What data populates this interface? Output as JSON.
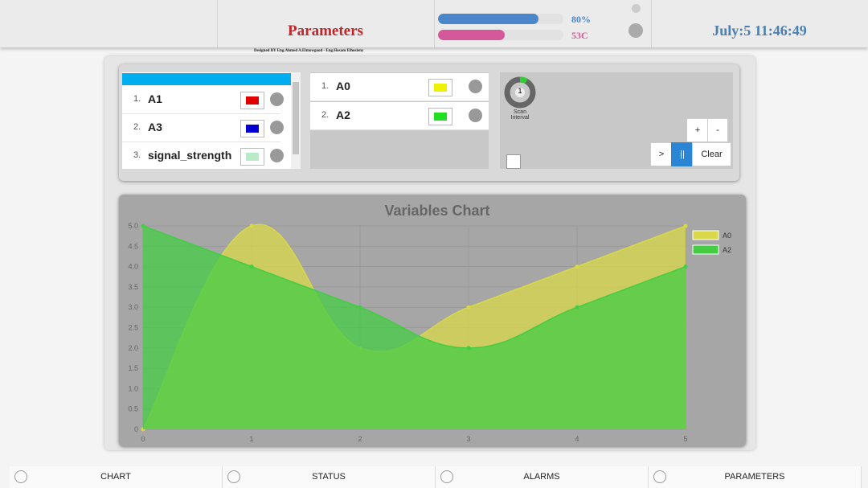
{
  "header": {
    "title": "Parameters",
    "credit": "Designed BY Eng.Ahmed A.Elmowgood - Eng.Hosam Elhosieny",
    "progress": [
      {
        "value": 80,
        "label": "80%",
        "color": "#4a86c8"
      },
      {
        "value": 53,
        "label": "53C",
        "color": "#d4589a"
      }
    ],
    "datetime": "July:5 11:46:49"
  },
  "variables": [
    {
      "index": "1.",
      "name": "A1",
      "color": "#e00000"
    },
    {
      "index": "2.",
      "name": "A3",
      "color": "#0000d0"
    },
    {
      "index": "3.",
      "name": "signal_strength",
      "color": "#b8ecc8"
    }
  ],
  "selected": [
    {
      "index": "1.",
      "name": "A0",
      "color": "#f0f000"
    },
    {
      "index": "2.",
      "name": "A2",
      "color": "#22dd22"
    }
  ],
  "controls": {
    "scan_value": "1",
    "scan_label": "Scan Interval",
    "buttons": [
      "+",
      "-",
      ">",
      "||",
      "Clear"
    ]
  },
  "chart": {
    "type": "line",
    "title": "Variables Chart",
    "x": [
      0,
      1,
      2,
      3,
      4,
      5
    ],
    "xlim": [
      0,
      5
    ],
    "xticks": [
      0,
      1,
      2,
      3,
      4,
      5
    ],
    "ylim": [
      0,
      5
    ],
    "yticks": [
      0,
      0.5,
      {
        "value": 1,
        "label": "1.0"
      },
      1.5,
      {
        "value": 2,
        "label": "2.0"
      },
      2.5,
      {
        "value": 3,
        "label": "3.0"
      },
      3.5,
      {
        "value": 4,
        "label": "4.0"
      },
      4.5,
      {
        "value": 5,
        "label": "5.0"
      }
    ],
    "grid": true,
    "legend": "top-right",
    "series": [
      {
        "name": "A0",
        "color": "#d8d84a",
        "values": [
          0,
          5,
          2,
          3,
          4,
          5
        ]
      },
      {
        "name": "A2",
        "color": "#44cc44",
        "values": [
          5,
          4,
          3,
          2,
          3,
          4
        ]
      }
    ]
  },
  "nav": [
    "CHART",
    "STATUS",
    "ALARMS",
    "PARAMETERS"
  ]
}
